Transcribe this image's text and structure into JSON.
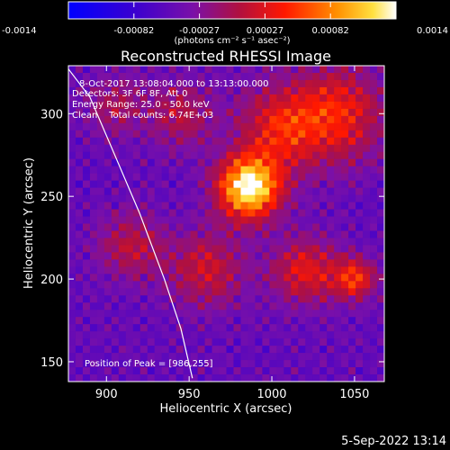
{
  "chart_data": {
    "type": "heatmap",
    "title": "Reconstructed RHESSI Image",
    "xlabel": "Heliocentric X (arcsec)",
    "ylabel": "Heliocentric Y (arcsec)",
    "xlim": [
      877,
      1068
    ],
    "ylim": [
      138,
      329
    ],
    "x_ticks": [
      900,
      950,
      1000,
      1050
    ],
    "y_ticks": [
      150,
      200,
      250,
      300
    ],
    "colorbar": {
      "range": [
        -0.0014,
        0.0014
      ],
      "ticks": [
        "-0.0014",
        "-0.00082",
        "-0.00027",
        "0.00027",
        "0.00082",
        "0.0014"
      ],
      "unit_label": "(photons cm⁻² s⁻¹ asec⁻²)",
      "colormap": "blue-purple-red-yellow-white"
    },
    "peak": {
      "x": 986,
      "y": 255
    },
    "sources": [
      {
        "x": 986,
        "y": 255,
        "amplitude": 1.0,
        "width": 13
      },
      {
        "x": 1005,
        "y": 290,
        "amplitude": 0.42,
        "width": 18
      },
      {
        "x": 1040,
        "y": 300,
        "amplitude": 0.45,
        "width": 20
      },
      {
        "x": 1050,
        "y": 200,
        "amplitude": 0.5,
        "width": 9
      },
      {
        "x": 1020,
        "y": 205,
        "amplitude": 0.42,
        "width": 14
      },
      {
        "x": 960,
        "y": 205,
        "amplitude": 0.35,
        "width": 16
      },
      {
        "x": 915,
        "y": 220,
        "amplitude": 0.3,
        "width": 14
      },
      {
        "x": 945,
        "y": 300,
        "amplitude": 0.28,
        "width": 14
      },
      {
        "x": 905,
        "y": 305,
        "amplitude": 0.25,
        "width": 12
      }
    ],
    "limb_curve": [
      [
        877,
        327
      ],
      [
        890,
        310
      ],
      [
        905,
        275
      ],
      [
        920,
        240
      ],
      [
        935,
        200
      ],
      [
        945,
        170
      ],
      [
        952,
        140
      ]
    ]
  },
  "annotations": {
    "time_range": "8-Oct-2017 13:08:04.000 to 13:13:00.000",
    "detectors": "Detectors: 3F 6F 8F, Att 0",
    "energy_range": "Energy Range: 25.0 - 50.0 keV",
    "method_counts": "Clean    Total counts: 6.74E+03",
    "peak_label": "Position of Peak = [986,255]"
  },
  "footer": {
    "timestamp": "5-Sep-2022 13:14"
  }
}
